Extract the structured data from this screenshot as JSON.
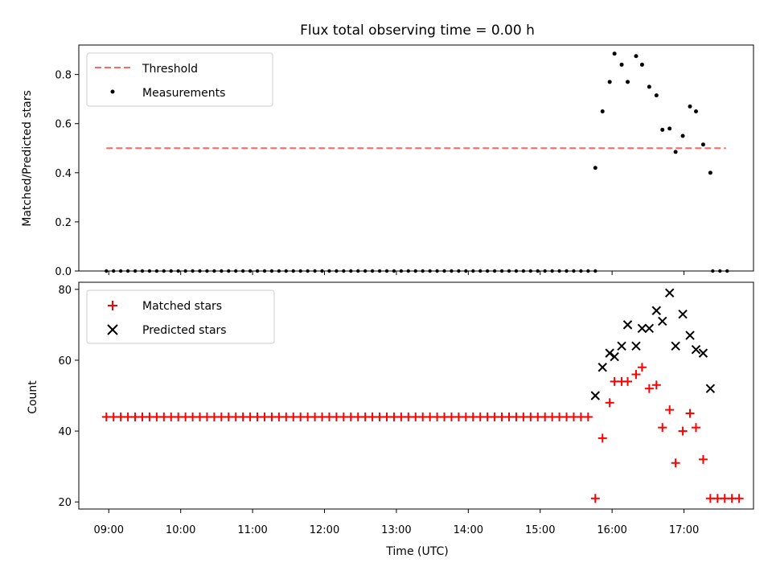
{
  "title": "Flux total observing time = 0.00 h",
  "xlabel": "Time (UTC)",
  "x_ticks": [
    "09:00",
    "10:00",
    "11:00",
    "12:00",
    "13:00",
    "14:00",
    "15:00",
    "16:00",
    "17:00"
  ],
  "colors": {
    "threshold": "#ff6666",
    "measurements": "#000000",
    "matched": "#ff0000",
    "predicted": "#000000"
  },
  "chart_data": [
    {
      "type": "scatter",
      "panel": "top",
      "ylabel": "Matched/Predicted stars",
      "xlim": [
        "08:35",
        "17:58"
      ],
      "ylim": [
        0,
        0.92
      ],
      "y_ticks": [
        "0.0",
        "0.2",
        "0.4",
        "0.6",
        "0.8"
      ],
      "legend": {
        "location": "upper-left",
        "entries": [
          "Threshold",
          "Measurements"
        ]
      },
      "threshold": {
        "name": "Threshold",
        "y": 0.5,
        "x_range": [
          "08:58",
          "17:35"
        ],
        "style": "dashed"
      },
      "measurements": {
        "name": "Measurements",
        "zero_x": [
          "08:58",
          "09:04",
          "09:10",
          "09:16",
          "09:22",
          "09:28",
          "09:34",
          "09:40",
          "09:46",
          "09:52",
          "09:58",
          "10:04",
          "10:10",
          "10:16",
          "10:22",
          "10:28",
          "10:34",
          "10:40",
          "10:46",
          "10:52",
          "10:58",
          "11:04",
          "11:10",
          "11:16",
          "11:22",
          "11:28",
          "11:34",
          "11:40",
          "11:46",
          "11:52",
          "11:58",
          "12:04",
          "12:10",
          "12:16",
          "12:22",
          "12:28",
          "12:34",
          "12:40",
          "12:46",
          "12:52",
          "12:58",
          "13:04",
          "13:10",
          "13:16",
          "13:22",
          "13:28",
          "13:34",
          "13:40",
          "13:46",
          "13:52",
          "13:58",
          "14:04",
          "14:10",
          "14:16",
          "14:22",
          "14:28",
          "14:34",
          "14:40",
          "14:46",
          "14:52",
          "14:58",
          "15:04",
          "15:10",
          "15:16",
          "15:22",
          "15:28",
          "15:34",
          "15:40",
          "15:46",
          "17:24",
          "17:30",
          "17:36"
        ],
        "points": [
          {
            "x": "15:46",
            "y": 0.42
          },
          {
            "x": "15:52",
            "y": 0.65
          },
          {
            "x": "15:58",
            "y": 0.77
          },
          {
            "x": "16:02",
            "y": 0.885
          },
          {
            "x": "16:08",
            "y": 0.84
          },
          {
            "x": "16:13",
            "y": 0.77
          },
          {
            "x": "16:20",
            "y": 0.875
          },
          {
            "x": "16:25",
            "y": 0.84
          },
          {
            "x": "16:31",
            "y": 0.75
          },
          {
            "x": "16:37",
            "y": 0.715
          },
          {
            "x": "16:42",
            "y": 0.575
          },
          {
            "x": "16:48",
            "y": 0.58
          },
          {
            "x": "16:53",
            "y": 0.485
          },
          {
            "x": "16:59",
            "y": 0.55
          },
          {
            "x": "17:05",
            "y": 0.67
          },
          {
            "x": "17:10",
            "y": 0.65
          },
          {
            "x": "17:16",
            "y": 0.515
          },
          {
            "x": "17:22",
            "y": 0.4
          }
        ]
      }
    },
    {
      "type": "scatter",
      "panel": "bottom",
      "ylabel": "Count",
      "xlim": [
        "08:35",
        "17:58"
      ],
      "ylim": [
        18,
        82
      ],
      "y_ticks": [
        "20",
        "40",
        "60",
        "80"
      ],
      "legend": {
        "location": "upper-left",
        "entries": [
          "Matched stars",
          "Predicted stars"
        ]
      },
      "matched": {
        "name": "Matched stars",
        "flat_y": 44,
        "flat_x": [
          "08:58",
          "09:04",
          "09:10",
          "09:16",
          "09:22",
          "09:28",
          "09:34",
          "09:40",
          "09:46",
          "09:52",
          "09:58",
          "10:04",
          "10:10",
          "10:16",
          "10:22",
          "10:28",
          "10:34",
          "10:40",
          "10:46",
          "10:52",
          "10:58",
          "11:04",
          "11:10",
          "11:16",
          "11:22",
          "11:28",
          "11:34",
          "11:40",
          "11:46",
          "11:52",
          "11:58",
          "12:04",
          "12:10",
          "12:16",
          "12:22",
          "12:28",
          "12:34",
          "12:40",
          "12:46",
          "12:52",
          "12:58",
          "13:04",
          "13:10",
          "13:16",
          "13:22",
          "13:28",
          "13:34",
          "13:40",
          "13:46",
          "13:52",
          "13:58",
          "14:04",
          "14:10",
          "14:16",
          "14:22",
          "14:28",
          "14:34",
          "14:40",
          "14:46",
          "14:52",
          "14:58",
          "15:04",
          "15:10",
          "15:16",
          "15:22",
          "15:28",
          "15:34",
          "15:40"
        ],
        "points": [
          {
            "x": "15:46",
            "y": 21
          },
          {
            "x": "15:52",
            "y": 38
          },
          {
            "x": "15:58",
            "y": 48
          },
          {
            "x": "16:02",
            "y": 54
          },
          {
            "x": "16:08",
            "y": 54
          },
          {
            "x": "16:13",
            "y": 54
          },
          {
            "x": "16:20",
            "y": 56
          },
          {
            "x": "16:25",
            "y": 58
          },
          {
            "x": "16:31",
            "y": 52
          },
          {
            "x": "16:37",
            "y": 53
          },
          {
            "x": "16:42",
            "y": 41
          },
          {
            "x": "16:48",
            "y": 46
          },
          {
            "x": "16:53",
            "y": 31
          },
          {
            "x": "16:59",
            "y": 40
          },
          {
            "x": "17:05",
            "y": 45
          },
          {
            "x": "17:10",
            "y": 41
          },
          {
            "x": "17:16",
            "y": 32
          },
          {
            "x": "17:22",
            "y": 21
          },
          {
            "x": "17:28",
            "y": 21
          },
          {
            "x": "17:34",
            "y": 21
          },
          {
            "x": "17:40",
            "y": 21
          },
          {
            "x": "17:46",
            "y": 21
          }
        ]
      },
      "predicted": {
        "name": "Predicted stars",
        "points": [
          {
            "x": "15:46",
            "y": 50
          },
          {
            "x": "15:52",
            "y": 58
          },
          {
            "x": "15:58",
            "y": 62
          },
          {
            "x": "16:02",
            "y": 61
          },
          {
            "x": "16:08",
            "y": 64
          },
          {
            "x": "16:13",
            "y": 70
          },
          {
            "x": "16:20",
            "y": 64
          },
          {
            "x": "16:25",
            "y": 69
          },
          {
            "x": "16:31",
            "y": 69
          },
          {
            "x": "16:37",
            "y": 74
          },
          {
            "x": "16:42",
            "y": 71
          },
          {
            "x": "16:48",
            "y": 79
          },
          {
            "x": "16:53",
            "y": 64
          },
          {
            "x": "16:59",
            "y": 73
          },
          {
            "x": "17:05",
            "y": 67
          },
          {
            "x": "17:10",
            "y": 63
          },
          {
            "x": "17:16",
            "y": 62
          },
          {
            "x": "17:22",
            "y": 52
          }
        ]
      }
    }
  ]
}
